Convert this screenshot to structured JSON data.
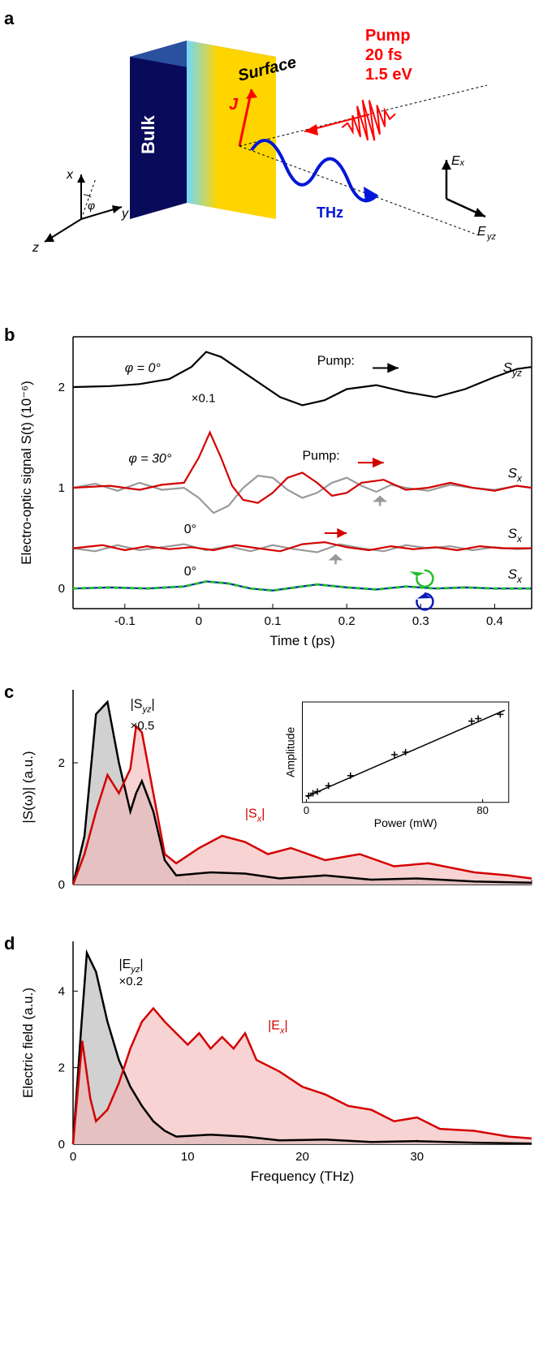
{
  "panelA": {
    "label": "a",
    "bulk_text": "Bulk",
    "surface_text": "Surface",
    "pump_lines": [
      "Pump",
      "20 fs",
      "1.5 eV"
    ],
    "j_label": "J",
    "thz_label": "THz",
    "axes": {
      "x": "x",
      "y": "y",
      "z": "z",
      "phi": "φ"
    },
    "out_axes": {
      "ex": "Eₓ",
      "eyz": "E_yz"
    },
    "colors": {
      "bulk": "#0a0a5a",
      "surface_grad_left": "#6fd8ff",
      "surface_grad_right": "#ffd500",
      "pump": "#ff0000",
      "thz": "#0016d8",
      "text": "#000000"
    }
  },
  "panelB": {
    "label": "b",
    "xlabel": "Time t (ps)",
    "ylabel": "Electro-optic signal S(t) (10⁻⁶)",
    "xlim": [
      -0.17,
      0.45
    ],
    "ylim": [
      -0.2,
      2.5
    ],
    "xticks": [
      -0.1,
      0,
      0.1,
      0.2,
      0.3,
      0.4
    ],
    "yticks": [
      0,
      1,
      2
    ],
    "annotations": {
      "phi0": "φ = 0°",
      "phi30": "φ = 30°",
      "phi0_b": "0°",
      "phi0_c": "0°",
      "mult01": "×0.1",
      "pump_lbl": "Pump:",
      "syz": "S_yz",
      "sx": "Sₓ"
    },
    "colors": {
      "black": "#000000",
      "gray": "#999999",
      "red": "#d40000",
      "green": "#22c02b",
      "blue": "#0a1bb8",
      "axis": "#000000",
      "bg": "#ffffff"
    },
    "traces": {
      "trace1_black": {
        "baseline": 2.0,
        "color": "#000000",
        "pts": [
          [
            -0.17,
            2.0
          ],
          [
            -0.12,
            2.01
          ],
          [
            -0.08,
            2.03
          ],
          [
            -0.04,
            2.08
          ],
          [
            -0.01,
            2.2
          ],
          [
            0.01,
            2.35
          ],
          [
            0.03,
            2.3
          ],
          [
            0.05,
            2.2
          ],
          [
            0.08,
            2.05
          ],
          [
            0.11,
            1.9
          ],
          [
            0.14,
            1.82
          ],
          [
            0.17,
            1.87
          ],
          [
            0.2,
            1.98
          ],
          [
            0.24,
            2.02
          ],
          [
            0.28,
            1.95
          ],
          [
            0.32,
            1.9
          ],
          [
            0.36,
            1.98
          ],
          [
            0.4,
            2.1
          ],
          [
            0.43,
            2.18
          ],
          [
            0.45,
            2.2
          ]
        ]
      },
      "trace2_red": {
        "baseline": 1.0,
        "color": "#d40000",
        "pts": [
          [
            -0.17,
            1.0
          ],
          [
            -0.12,
            1.02
          ],
          [
            -0.08,
            0.98
          ],
          [
            -0.05,
            1.03
          ],
          [
            -0.02,
            1.05
          ],
          [
            0.0,
            1.3
          ],
          [
            0.015,
            1.55
          ],
          [
            0.03,
            1.3
          ],
          [
            0.045,
            1.02
          ],
          [
            0.06,
            0.88
          ],
          [
            0.08,
            0.85
          ],
          [
            0.1,
            0.95
          ],
          [
            0.12,
            1.1
          ],
          [
            0.14,
            1.15
          ],
          [
            0.16,
            1.05
          ],
          [
            0.18,
            0.92
          ],
          [
            0.2,
            0.95
          ],
          [
            0.22,
            1.05
          ],
          [
            0.25,
            1.08
          ],
          [
            0.28,
            0.98
          ],
          [
            0.31,
            1.0
          ],
          [
            0.34,
            1.05
          ],
          [
            0.37,
            1.0
          ],
          [
            0.4,
            0.97
          ],
          [
            0.43,
            1.02
          ],
          [
            0.45,
            1.0
          ]
        ]
      },
      "trace2_gray": {
        "baseline": 1.0,
        "color": "#999999",
        "pts": [
          [
            -0.17,
            1.0
          ],
          [
            -0.14,
            1.04
          ],
          [
            -0.11,
            0.97
          ],
          [
            -0.08,
            1.05
          ],
          [
            -0.05,
            0.98
          ],
          [
            -0.02,
            1.0
          ],
          [
            0.0,
            0.9
          ],
          [
            0.02,
            0.75
          ],
          [
            0.04,
            0.82
          ],
          [
            0.06,
            1.0
          ],
          [
            0.08,
            1.12
          ],
          [
            0.1,
            1.1
          ],
          [
            0.12,
            0.98
          ],
          [
            0.14,
            0.9
          ],
          [
            0.16,
            0.95
          ],
          [
            0.18,
            1.05
          ],
          [
            0.2,
            1.1
          ],
          [
            0.22,
            1.02
          ],
          [
            0.24,
            0.96
          ],
          [
            0.26,
            1.03
          ],
          [
            0.28,
            1.0
          ],
          [
            0.31,
            0.97
          ],
          [
            0.34,
            1.03
          ],
          [
            0.37,
            1.0
          ],
          [
            0.4,
            0.98
          ],
          [
            0.43,
            1.02
          ],
          [
            0.45,
            1.0
          ]
        ]
      },
      "trace3_red": {
        "baseline": 0.4,
        "color": "#d40000",
        "pts": [
          [
            -0.17,
            0.4
          ],
          [
            -0.13,
            0.43
          ],
          [
            -0.1,
            0.38
          ],
          [
            -0.07,
            0.42
          ],
          [
            -0.04,
            0.39
          ],
          [
            -0.01,
            0.41
          ],
          [
            0.02,
            0.38
          ],
          [
            0.05,
            0.43
          ],
          [
            0.08,
            0.4
          ],
          [
            0.11,
            0.37
          ],
          [
            0.14,
            0.44
          ],
          [
            0.17,
            0.46
          ],
          [
            0.2,
            0.41
          ],
          [
            0.23,
            0.38
          ],
          [
            0.26,
            0.42
          ],
          [
            0.29,
            0.39
          ],
          [
            0.32,
            0.41
          ],
          [
            0.35,
            0.38
          ],
          [
            0.38,
            0.42
          ],
          [
            0.41,
            0.4
          ],
          [
            0.45,
            0.4
          ]
        ]
      },
      "trace3_gray": {
        "baseline": 0.4,
        "color": "#999999",
        "pts": [
          [
            -0.17,
            0.4
          ],
          [
            -0.14,
            0.37
          ],
          [
            -0.11,
            0.43
          ],
          [
            -0.08,
            0.38
          ],
          [
            -0.05,
            0.41
          ],
          [
            -0.02,
            0.44
          ],
          [
            0.01,
            0.38
          ],
          [
            0.04,
            0.42
          ],
          [
            0.07,
            0.37
          ],
          [
            0.1,
            0.43
          ],
          [
            0.13,
            0.39
          ],
          [
            0.16,
            0.36
          ],
          [
            0.19,
            0.44
          ],
          [
            0.22,
            0.4
          ],
          [
            0.25,
            0.37
          ],
          [
            0.28,
            0.43
          ],
          [
            0.31,
            0.4
          ],
          [
            0.34,
            0.42
          ],
          [
            0.37,
            0.38
          ],
          [
            0.4,
            0.41
          ],
          [
            0.43,
            0.39
          ],
          [
            0.45,
            0.4
          ]
        ]
      },
      "trace4_green": {
        "baseline": 0.0,
        "color": "#22c02b",
        "dash": "6,4",
        "pts": [
          [
            -0.17,
            0.0
          ],
          [
            -0.12,
            0.01
          ],
          [
            -0.07,
            0.0
          ],
          [
            -0.02,
            0.02
          ],
          [
            0.01,
            0.07
          ],
          [
            0.04,
            0.05
          ],
          [
            0.07,
            0.0
          ],
          [
            0.1,
            -0.02
          ],
          [
            0.13,
            0.01
          ],
          [
            0.16,
            0.04
          ],
          [
            0.2,
            0.01
          ],
          [
            0.24,
            -0.01
          ],
          [
            0.28,
            0.02
          ],
          [
            0.32,
            0.0
          ],
          [
            0.36,
            0.01
          ],
          [
            0.4,
            0.0
          ],
          [
            0.45,
            0.0
          ]
        ]
      },
      "trace4_blue": {
        "baseline": 0.0,
        "color": "#0a1bb8",
        "pts": [
          [
            -0.17,
            0.0
          ],
          [
            -0.12,
            0.01
          ],
          [
            -0.07,
            0.0
          ],
          [
            -0.02,
            0.02
          ],
          [
            0.01,
            0.07
          ],
          [
            0.04,
            0.05
          ],
          [
            0.07,
            0.0
          ],
          [
            0.1,
            -0.02
          ],
          [
            0.13,
            0.01
          ],
          [
            0.16,
            0.04
          ],
          [
            0.2,
            0.01
          ],
          [
            0.24,
            -0.01
          ],
          [
            0.28,
            0.02
          ],
          [
            0.32,
            0.0
          ],
          [
            0.36,
            0.01
          ],
          [
            0.4,
            0.0
          ],
          [
            0.45,
            0.0
          ]
        ]
      }
    }
  },
  "panelC": {
    "label": "c",
    "ylabel": "|S(ω)| (a.u.)",
    "xlim": [
      0,
      40
    ],
    "ylim": [
      0,
      3.2
    ],
    "yticks": [
      0,
      2
    ],
    "annotations": {
      "syz": "|S_yz|",
      "mult": "×0.5",
      "sx": "|Sₓ|"
    },
    "colors": {
      "black": "#000000",
      "gray_fill": "#cccccc",
      "red": "#d40000",
      "red_fill": "#f2b5b5"
    },
    "inset": {
      "xlabel": "Power (mW)",
      "ylabel": "Amplitude",
      "xlim": [
        0,
        90
      ],
      "ylim": [
        0,
        1.1
      ],
      "xticks": [
        0,
        80
      ],
      "points": [
        [
          1,
          0.03
        ],
        [
          3,
          0.06
        ],
        [
          5,
          0.08
        ],
        [
          10,
          0.15
        ],
        [
          20,
          0.27
        ],
        [
          40,
          0.52
        ],
        [
          45,
          0.55
        ],
        [
          75,
          0.92
        ],
        [
          78,
          0.95
        ],
        [
          88,
          1.0
        ]
      ]
    },
    "black_curve": [
      [
        0,
        0
      ],
      [
        1,
        0.8
      ],
      [
        2,
        2.8
      ],
      [
        3,
        3.0
      ],
      [
        4,
        2.0
      ],
      [
        5,
        1.2
      ],
      [
        5.5,
        1.5
      ],
      [
        6,
        1.7
      ],
      [
        7,
        1.2
      ],
      [
        8,
        0.4
      ],
      [
        9,
        0.15
      ],
      [
        12,
        0.2
      ],
      [
        15,
        0.18
      ],
      [
        18,
        0.1
      ],
      [
        22,
        0.15
      ],
      [
        26,
        0.08
      ],
      [
        30,
        0.1
      ],
      [
        35,
        0.05
      ],
      [
        40,
        0.03
      ]
    ],
    "red_curve": [
      [
        0,
        0
      ],
      [
        1,
        0.5
      ],
      [
        2,
        1.2
      ],
      [
        3,
        1.8
      ],
      [
        4,
        1.5
      ],
      [
        5,
        1.9
      ],
      [
        5.5,
        2.6
      ],
      [
        6,
        2.5
      ],
      [
        7,
        1.5
      ],
      [
        8,
        0.5
      ],
      [
        9,
        0.35
      ],
      [
        11,
        0.6
      ],
      [
        13,
        0.8
      ],
      [
        15,
        0.7
      ],
      [
        17,
        0.5
      ],
      [
        19,
        0.6
      ],
      [
        22,
        0.4
      ],
      [
        25,
        0.5
      ],
      [
        28,
        0.3
      ],
      [
        31,
        0.35
      ],
      [
        35,
        0.2
      ],
      [
        38,
        0.15
      ],
      [
        40,
        0.1
      ]
    ]
  },
  "panelD": {
    "label": "d",
    "xlabel": "Frequency (THz)",
    "ylabel": "Electric field (a.u.)",
    "xlim": [
      0,
      40
    ],
    "ylim": [
      0,
      5.3
    ],
    "xticks": [
      0,
      10,
      20,
      30
    ],
    "yticks": [
      0,
      2,
      4
    ],
    "annotations": {
      "eyz": "|E_yz|",
      "mult": "×0.2",
      "ex": "|Eₓ|"
    },
    "colors": {
      "black": "#000000",
      "gray_fill": "#cccccc",
      "red": "#d40000",
      "red_fill": "#f2b5b5"
    },
    "black_curve": [
      [
        0,
        0
      ],
      [
        0.7,
        3
      ],
      [
        1.2,
        5.0
      ],
      [
        2,
        4.5
      ],
      [
        3,
        3.2
      ],
      [
        4,
        2.2
      ],
      [
        5,
        1.5
      ],
      [
        6,
        1.0
      ],
      [
        7,
        0.6
      ],
      [
        8,
        0.35
      ],
      [
        9,
        0.2
      ],
      [
        12,
        0.25
      ],
      [
        15,
        0.2
      ],
      [
        18,
        0.1
      ],
      [
        22,
        0.12
      ],
      [
        26,
        0.06
      ],
      [
        30,
        0.08
      ],
      [
        35,
        0.04
      ],
      [
        40,
        0.02
      ]
    ],
    "red_curve": [
      [
        0,
        0
      ],
      [
        0.8,
        2.7
      ],
      [
        1.5,
        1.2
      ],
      [
        2,
        0.6
      ],
      [
        3,
        0.9
      ],
      [
        4,
        1.6
      ],
      [
        5,
        2.5
      ],
      [
        6,
        3.2
      ],
      [
        7,
        3.55
      ],
      [
        8,
        3.2
      ],
      [
        9,
        2.9
      ],
      [
        10,
        2.6
      ],
      [
        11,
        2.9
      ],
      [
        12,
        2.5
      ],
      [
        13,
        2.8
      ],
      [
        14,
        2.5
      ],
      [
        15,
        2.9
      ],
      [
        16,
        2.2
      ],
      [
        18,
        1.9
      ],
      [
        20,
        1.5
      ],
      [
        22,
        1.3
      ],
      [
        24,
        1.0
      ],
      [
        26,
        0.9
      ],
      [
        28,
        0.6
      ],
      [
        30,
        0.7
      ],
      [
        32,
        0.4
      ],
      [
        35,
        0.35
      ],
      [
        38,
        0.2
      ],
      [
        40,
        0.15
      ]
    ]
  }
}
